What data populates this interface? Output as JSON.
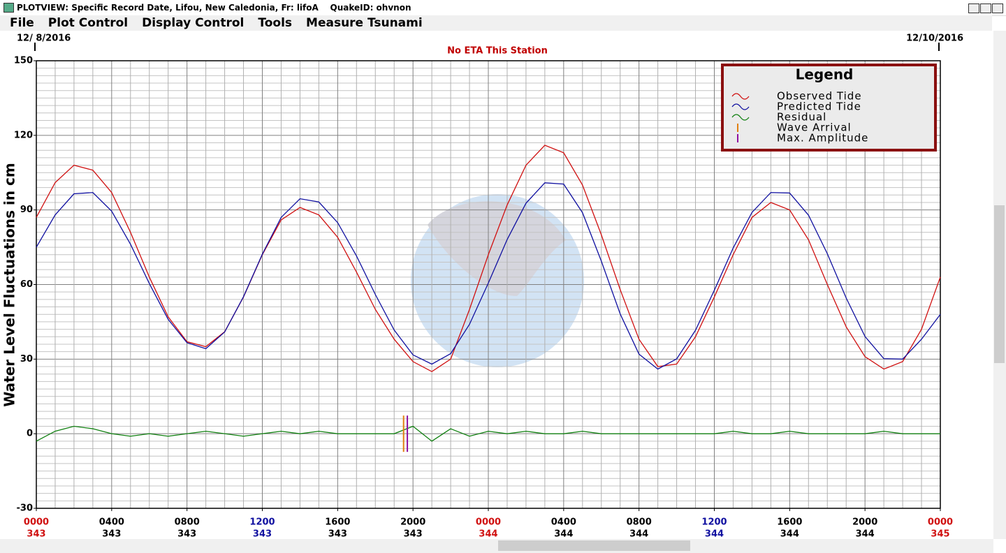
{
  "window": {
    "title": "PLOTVIEW: Specific Record Date, Lifou, New Caledonia, Fr: lifoA    QuakeID: ohvnon"
  },
  "menu": [
    "File",
    "Plot Control",
    "Display Control",
    "Tools",
    "Measure Tsunami"
  ],
  "chart_data": {
    "type": "line",
    "subtitle": "No ETA This Station",
    "ylabel": "Water Level Fluctuations in cm",
    "legend_title": "Legend",
    "date_labels": [
      {
        "value": 0,
        "label": "12/ 8/2016"
      },
      {
        "value": 48,
        "label": "12/10/2016"
      }
    ],
    "x": [
      0,
      1,
      2,
      3,
      4,
      5,
      6,
      7,
      8,
      9,
      10,
      11,
      12,
      13,
      14,
      15,
      16,
      17,
      18,
      19,
      20,
      21,
      22,
      23,
      24,
      25,
      26,
      27,
      28,
      29,
      30,
      31,
      32,
      33,
      34,
      35,
      36,
      37,
      38,
      39,
      40,
      41,
      42,
      43,
      44,
      45,
      46,
      47,
      48
    ],
    "series": [
      {
        "name": "Observed Tide",
        "color": "#d01010",
        "values": [
          87,
          101,
          108,
          106,
          97,
          81,
          63,
          47,
          37,
          35,
          41,
          55,
          72,
          86,
          91,
          88,
          79,
          65,
          50,
          38,
          29,
          25,
          30,
          50,
          72,
          92,
          108,
          116,
          113,
          100,
          80,
          58,
          38,
          27,
          28,
          39,
          55,
          72,
          87,
          93,
          90,
          78,
          60,
          43,
          31,
          26,
          29,
          42,
          63
        ]
      },
      {
        "name": "Predicted Tide",
        "color": "#1010a0",
        "values": [
          75,
          88,
          96.5,
          97,
          89.5,
          76.2,
          60.4,
          46,
          36.6,
          34.2,
          40.9,
          55.1,
          72.2,
          87,
          94.5,
          93.2,
          84.9,
          71.5,
          56,
          41.7,
          31.7,
          28,
          32.2,
          44,
          60.6,
          78.1,
          92.7,
          100.9,
          100.4,
          88.9,
          69.4,
          48.2,
          32,
          26,
          30.1,
          41.6,
          57.7,
          74.7,
          89,
          97,
          96.8,
          87.9,
          72.4,
          54.6,
          39.1,
          30.2,
          30,
          38,
          48
        ]
      },
      {
        "name": "Residual",
        "color": "#108010",
        "values": [
          -3,
          1,
          3,
          2,
          0,
          -1,
          0,
          -1,
          0,
          1,
          0,
          -1,
          0,
          1,
          0,
          1,
          0,
          0,
          0,
          0,
          3,
          -3,
          2,
          -1,
          1,
          0,
          1,
          0,
          0,
          1,
          0,
          0,
          0,
          0,
          0,
          0,
          0,
          1,
          0,
          0,
          1,
          0,
          0,
          0,
          0,
          1,
          0,
          0,
          0
        ]
      }
    ],
    "markers": [
      {
        "name": "Wave Arrival",
        "x": 19.5,
        "color": "#e08010"
      },
      {
        "name": "Max. Amplitude",
        "x": 19.7,
        "color": "#9010a0"
      }
    ],
    "xlim": [
      0,
      48
    ],
    "xticks": [
      {
        "value": 0,
        "label": "0000",
        "day": "343",
        "color": "#d01010"
      },
      {
        "value": 4,
        "label": "0400",
        "day": "343",
        "color": "#000000"
      },
      {
        "value": 8,
        "label": "0800",
        "day": "343",
        "color": "#000000"
      },
      {
        "value": 12,
        "label": "1200",
        "day": "343",
        "color": "#1010a0"
      },
      {
        "value": 16,
        "label": "1600",
        "day": "343",
        "color": "#000000"
      },
      {
        "value": 20,
        "label": "2000",
        "day": "343",
        "color": "#000000"
      },
      {
        "value": 24,
        "label": "0000",
        "day": "344",
        "color": "#d01010"
      },
      {
        "value": 28,
        "label": "0400",
        "day": "344",
        "color": "#000000"
      },
      {
        "value": 32,
        "label": "0800",
        "day": "344",
        "color": "#000000"
      },
      {
        "value": 36,
        "label": "1200",
        "day": "344",
        "color": "#1010a0"
      },
      {
        "value": 40,
        "label": "1600",
        "day": "344",
        "color": "#000000"
      },
      {
        "value": 44,
        "label": "2000",
        "day": "344",
        "color": "#000000"
      },
      {
        "value": 48,
        "label": "0000",
        "day": "345",
        "color": "#d01010"
      }
    ],
    "xgrid": [
      0,
      1,
      2,
      3,
      4,
      5,
      6,
      7,
      8,
      9,
      10,
      11,
      12,
      13,
      14,
      15,
      16,
      17,
      18,
      19,
      20,
      21,
      22,
      23,
      24,
      25,
      26,
      27,
      28,
      29,
      30,
      31,
      32,
      33,
      34,
      35,
      36,
      37,
      38,
      39,
      40,
      41,
      42,
      43,
      44,
      45,
      46,
      47,
      48
    ],
    "ylim": [
      -30,
      150
    ],
    "yticks": [
      -30,
      0,
      30,
      60,
      90,
      120,
      150
    ],
    "ygrid": [
      -30,
      -27,
      -24,
      -21,
      -18,
      -15,
      -12,
      -9,
      -6,
      -3,
      0,
      3,
      6,
      9,
      12,
      15,
      18,
      21,
      24,
      27,
      30,
      33,
      36,
      39,
      42,
      45,
      48,
      51,
      54,
      57,
      60,
      63,
      66,
      69,
      72,
      75,
      78,
      81,
      84,
      87,
      90,
      93,
      96,
      99,
      102,
      105,
      108,
      111,
      114,
      117,
      120,
      123,
      126,
      129,
      132,
      135,
      138,
      141,
      144,
      147,
      150
    ],
    "grid": true
  }
}
